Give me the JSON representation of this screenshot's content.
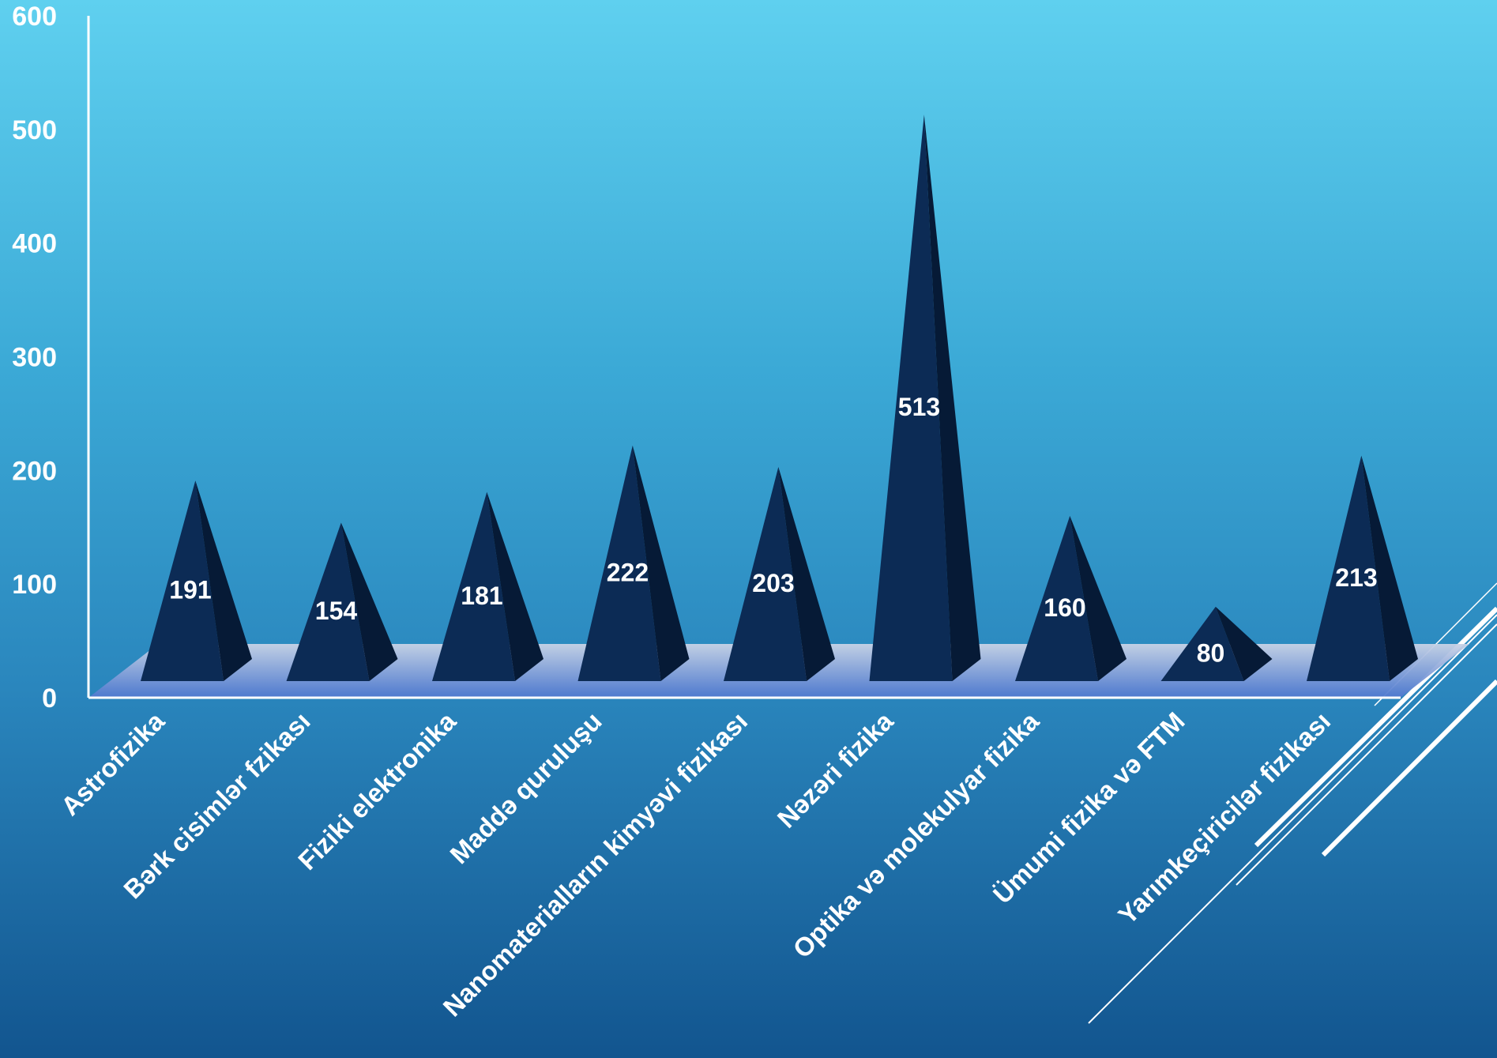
{
  "chart_data": {
    "type": "bar",
    "title": "",
    "xlabel": "",
    "ylabel": "",
    "ylim": [
      0,
      600
    ],
    "yticks": [
      0,
      100,
      200,
      300,
      400,
      500,
      600
    ],
    "grid": false,
    "categories": [
      "Astrofizika",
      "Bərk cisimlər fzikası",
      "Fiziki elektronika",
      "Maddə quruluşu",
      "Nanomaterialların kimyəvi fizikası",
      "Nəzəri fizika",
      "Optika və molekulyar fizika",
      "Ümumi fizika və FTM",
      "Yarımkeçiricilər fizikası"
    ],
    "series": [
      {
        "values": [
          191,
          154,
          181,
          222,
          203,
          513,
          160,
          80,
          213
        ]
      }
    ],
    "colors": {
      "pyramid_front": "#0c2b55",
      "pyramid_side": "#061a36",
      "floor": "#6f8fd6",
      "axis": "#ffffff",
      "text": "#ffffff"
    }
  }
}
